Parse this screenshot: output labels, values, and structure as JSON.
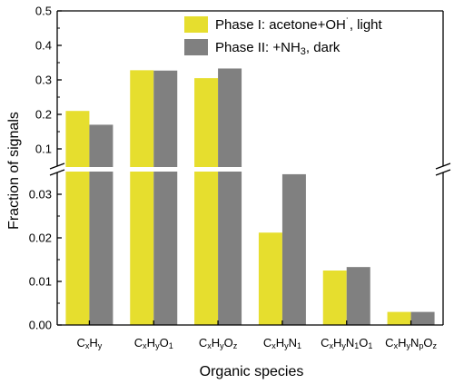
{
  "chart_data": {
    "type": "bar",
    "xlabel": "Organic species",
    "ylabel": "Fraction of  signals",
    "broken_axis": true,
    "upper_ylim": [
      0.05,
      0.5
    ],
    "lower_ylim": [
      0.0,
      0.035
    ],
    "upper_ticks": [
      "0.1",
      "0.2",
      "0.3",
      "0.4",
      "0.5"
    ],
    "lower_ticks": [
      "0.00",
      "0.01",
      "0.02",
      "0.03"
    ],
    "categories": [
      {
        "base": "C",
        "parts": [
          [
            "x",
            "H"
          ],
          [
            "y",
            ""
          ]
        ]
      },
      {
        "base": "C",
        "parts": [
          [
            "x",
            "H"
          ],
          [
            "y",
            "O"
          ],
          [
            "1",
            ""
          ]
        ]
      },
      {
        "base": "C",
        "parts": [
          [
            "x",
            "H"
          ],
          [
            "y",
            "O"
          ],
          [
            "z",
            ""
          ]
        ]
      },
      {
        "base": "C",
        "parts": [
          [
            "x",
            "H"
          ],
          [
            "y",
            "N"
          ],
          [
            "1",
            ""
          ]
        ]
      },
      {
        "base": "C",
        "parts": [
          [
            "x",
            "H"
          ],
          [
            "y",
            "N"
          ],
          [
            "1",
            "O"
          ],
          [
            "1",
            ""
          ]
        ]
      },
      {
        "base": "C",
        "parts": [
          [
            "x",
            "H"
          ],
          [
            "y",
            "N"
          ],
          [
            "p",
            "O"
          ],
          [
            "z",
            ""
          ]
        ]
      }
    ],
    "category_names": [
      "CxHy",
      "CxHyO1",
      "CxHyOz",
      "CxHyN1",
      "CxHyN1O1",
      "CxHyNpOz"
    ],
    "series": [
      {
        "name": "Phase I: acetone+OH˙, light",
        "color": "#e6de2e",
        "values": [
          0.21,
          0.328,
          0.305,
          0.0212,
          0.0125,
          0.003
        ]
      },
      {
        "name": "Phase II: +NH3, dark",
        "color": "#808080",
        "values": [
          0.17,
          0.327,
          0.333,
          0.0346,
          0.0133,
          0.003
        ]
      }
    ],
    "legend": {
      "placement": "top-right",
      "entries": [
        {
          "text_before": "Phase I: acetone+OH",
          "sup": "˙",
          "text_after": ", light"
        },
        {
          "text_before": "Phase II: +NH",
          "sub": "3",
          "text_after": ", dark"
        }
      ]
    }
  }
}
